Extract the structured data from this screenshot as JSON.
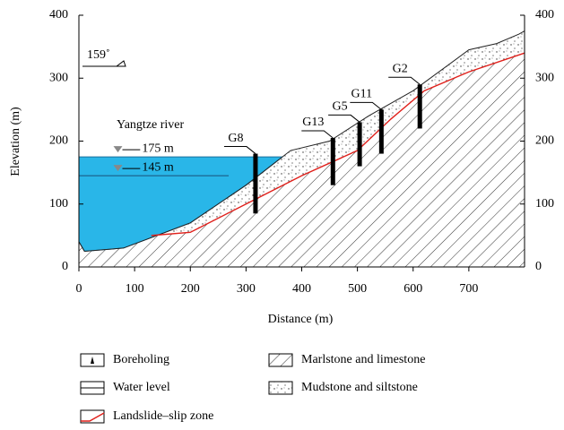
{
  "chart_data": {
    "type": "profile",
    "x_label": "Distance (m)",
    "y_label": "Elevation (m)",
    "xlim": [
      0,
      800
    ],
    "ylim": [
      0,
      400
    ],
    "xticks": [
      0,
      100,
      200,
      300,
      400,
      500,
      600,
      700
    ],
    "yticks": [
      0,
      100,
      200,
      300,
      400
    ],
    "surface": {
      "x": [
        0,
        10,
        80,
        200,
        300,
        380,
        450,
        520,
        600,
        700,
        750,
        790,
        800
      ],
      "values": [
        40,
        25,
        30,
        70,
        130,
        185,
        200,
        240,
        280,
        345,
        355,
        370,
        375
      ]
    },
    "slip_zone": {
      "name": "Landslide–slip zone",
      "x": [
        130,
        200,
        300,
        400,
        500,
        560,
        620,
        700,
        800
      ],
      "values": [
        50,
        55,
        100,
        145,
        185,
        235,
        280,
        310,
        340
      ]
    },
    "water_levels": [
      {
        "value": 175,
        "label": "175 m"
      },
      {
        "value": 145,
        "label": "145 m"
      }
    ],
    "river_label": "Yangtze river",
    "direction": "159˚",
    "boreholes": [
      {
        "name": "G8",
        "x": 317,
        "top": 180,
        "bottom": 85
      },
      {
        "name": "G13",
        "x": 456,
        "top": 205,
        "bottom": 130
      },
      {
        "name": "G5",
        "x": 504,
        "top": 230,
        "bottom": 160
      },
      {
        "name": "G11",
        "x": 543,
        "top": 250,
        "bottom": 180
      },
      {
        "name": "G2",
        "x": 612,
        "top": 290,
        "bottom": 220
      }
    ],
    "legend": [
      "Boreholing",
      "Water level",
      "Landslide–slip zone",
      "Marlstone and limestone",
      "Mudstone and siltstone"
    ]
  }
}
